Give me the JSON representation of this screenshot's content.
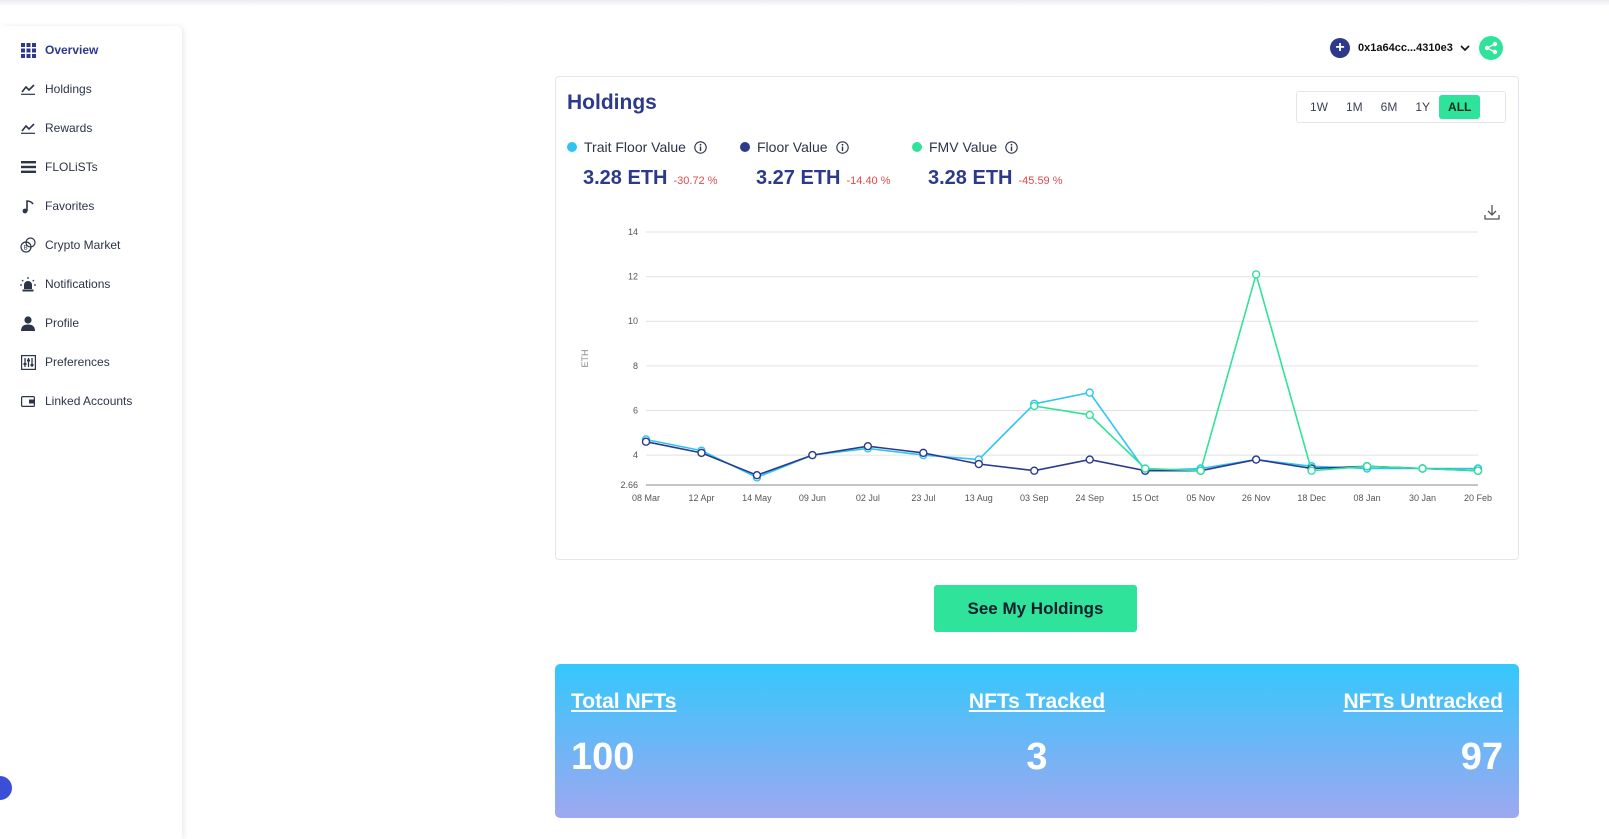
{
  "sidebar": {
    "items": [
      {
        "label": "Overview",
        "icon": "grid-icon",
        "active": true
      },
      {
        "label": "Holdings",
        "icon": "line-chart-icon"
      },
      {
        "label": "Rewards",
        "icon": "line-chart-icon"
      },
      {
        "label": "FLOLiSTs",
        "icon": "list-icon"
      },
      {
        "label": "Favorites",
        "icon": "music-note-icon"
      },
      {
        "label": "Crypto Market",
        "icon": "coins-icon"
      },
      {
        "label": "Notifications",
        "icon": "alarm-light-icon"
      },
      {
        "label": "Profile",
        "icon": "user-icon"
      },
      {
        "label": "Preferences",
        "icon": "sliders-icon"
      },
      {
        "label": "Linked Accounts",
        "icon": "wallet-icon"
      }
    ]
  },
  "wallet": {
    "address": "0x1a64cc...4310e3"
  },
  "holdings": {
    "title": "Holdings",
    "ranges": [
      "1W",
      "1M",
      "6M",
      "1Y",
      "ALL"
    ],
    "active_range": "ALL",
    "metrics": [
      {
        "name": "Trait Floor Value",
        "value": "3.28 ETH",
        "change": "-30.72 %",
        "color": "#2ec5f5"
      },
      {
        "name": "Floor Value",
        "value": "3.27 ETH",
        "change": "-14.40 %",
        "color": "#2d3a8c"
      },
      {
        "name": "FMV Value",
        "value": "3.28 ETH",
        "change": "-45.59 %",
        "color": "#2fe39b"
      }
    ]
  },
  "chart_data": {
    "type": "line",
    "ylabel": "ETH",
    "ylim": [
      2.66,
      14
    ],
    "yticks": [
      2.66,
      4,
      6,
      8,
      10,
      12,
      14
    ],
    "x": [
      "08 Mar",
      "12 Apr",
      "14 May",
      "09 Jun",
      "02 Jul",
      "23 Jul",
      "13 Aug",
      "03 Sep",
      "24 Sep",
      "15 Oct",
      "05 Nov",
      "26 Nov",
      "18 Dec",
      "08 Jan",
      "30 Jan",
      "20 Feb"
    ],
    "series": [
      {
        "name": "Trait Floor Value",
        "color": "#2ec5f5",
        "values": [
          4.7,
          4.2,
          3.0,
          4.0,
          4.3,
          4.0,
          3.8,
          6.3,
          6.8,
          3.3,
          3.4,
          3.8,
          3.5,
          3.4,
          3.4,
          3.4
        ]
      },
      {
        "name": "Floor Value",
        "color": "#2d3a8c",
        "values": [
          4.6,
          4.1,
          3.1,
          4.0,
          4.4,
          4.1,
          3.6,
          3.3,
          3.8,
          3.3,
          3.3,
          3.8,
          3.4,
          3.5,
          3.4,
          3.3
        ]
      },
      {
        "name": "FMV Value",
        "color": "#2fe39b",
        "values": [
          null,
          null,
          null,
          null,
          null,
          null,
          null,
          6.2,
          5.8,
          3.4,
          3.3,
          12.1,
          3.3,
          3.5,
          3.4,
          3.3
        ]
      }
    ],
    "grid": true,
    "legend": "top-left"
  },
  "cta": {
    "label": "See My Holdings"
  },
  "stats": [
    {
      "label": "Total NFTs",
      "value": "100"
    },
    {
      "label": "NFTs Tracked",
      "value": "3"
    },
    {
      "label": "NFTs Untracked",
      "value": "97"
    }
  ]
}
